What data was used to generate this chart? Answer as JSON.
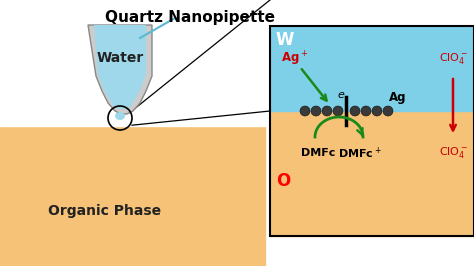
{
  "title": "Quartz Nanopipette",
  "bg_color": "#ffffff",
  "water_color": "#9fd8ea",
  "organic_color": "#f5c278",
  "right_water_color": "#7ecfe8",
  "right_organic_color": "#f5c278",
  "water_label": "Water",
  "organic_label": "Organic Phase",
  "W_label": "W",
  "O_label": "O",
  "nanoparticle_color": "#3a3a3a",
  "green_color": "#1a8a1a",
  "red_color": "#cc0000",
  "title_fontsize": 11,
  "label_fontsize": 10,
  "small_fontsize": 8,
  "pipette_gray": "#cccccc",
  "pipette_edge": "#888888",
  "pointer_line_color": "#5ab8d4"
}
